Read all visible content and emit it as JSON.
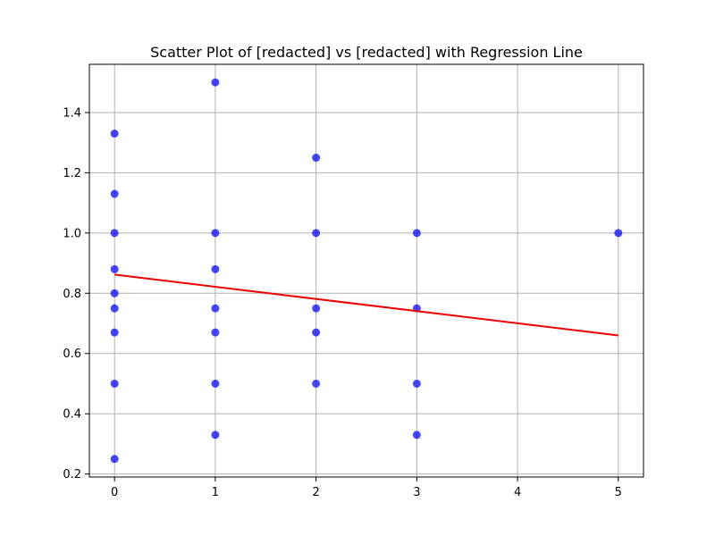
{
  "chart_data": {
    "type": "scatter",
    "title": "Scatter Plot of [redacted] vs [redacted] with Regression Line",
    "xlabel": "",
    "ylabel": "",
    "xlim": [
      -0.25,
      5.25
    ],
    "ylim": [
      0.19,
      1.56
    ],
    "xticks": [
      0,
      1,
      2,
      3,
      4,
      5
    ],
    "yticks": [
      0.2,
      0.4,
      0.6,
      0.8,
      1.0,
      1.2,
      1.4
    ],
    "grid": true,
    "colors": {
      "points": "#0000ee",
      "regression": "#ee0000",
      "grid": "#b0b0b0"
    },
    "points": [
      {
        "x": 0,
        "y": 1.33
      },
      {
        "x": 0,
        "y": 1.13
      },
      {
        "x": 0,
        "y": 1.0
      },
      {
        "x": 0,
        "y": 0.88
      },
      {
        "x": 0,
        "y": 0.8
      },
      {
        "x": 0,
        "y": 0.75
      },
      {
        "x": 0,
        "y": 0.67
      },
      {
        "x": 0,
        "y": 0.5
      },
      {
        "x": 0,
        "y": 0.25
      },
      {
        "x": 1,
        "y": 1.5
      },
      {
        "x": 1,
        "y": 1.0
      },
      {
        "x": 1,
        "y": 0.88
      },
      {
        "x": 1,
        "y": 0.75
      },
      {
        "x": 1,
        "y": 0.67
      },
      {
        "x": 1,
        "y": 0.5
      },
      {
        "x": 1,
        "y": 0.33
      },
      {
        "x": 2,
        "y": 1.25
      },
      {
        "x": 2,
        "y": 1.0
      },
      {
        "x": 2,
        "y": 0.75
      },
      {
        "x": 2,
        "y": 0.67
      },
      {
        "x": 2,
        "y": 0.5
      },
      {
        "x": 3,
        "y": 1.0
      },
      {
        "x": 3,
        "y": 0.75
      },
      {
        "x": 3,
        "y": 0.5
      },
      {
        "x": 3,
        "y": 0.33
      },
      {
        "x": 5,
        "y": 1.0
      }
    ],
    "regression_line": {
      "x": [
        0,
        5
      ],
      "y": [
        0.862,
        0.66
      ]
    }
  }
}
